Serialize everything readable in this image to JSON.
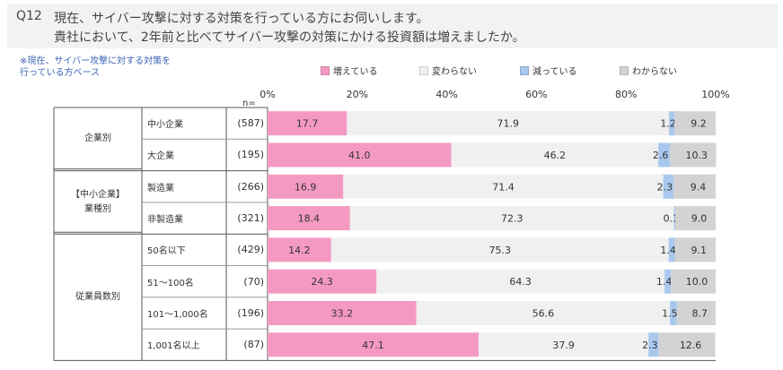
{
  "question": {
    "number": "Q12",
    "line1": "現在、サイバー攻撃に対する対策を行っている方にお伺いします。",
    "line2": "貴社において、2年前と比べてサイバー攻撃の対策にかける投資額は増えましたか。"
  },
  "note": "※現在、サイバー攻撃に対する対策を\n 行っている方ベース",
  "n_label": "n=",
  "chart_data": {
    "type": "bar",
    "orientation": "horizontal",
    "stacked": true,
    "xlim": [
      0,
      100
    ],
    "ticks": [
      "0%",
      "20%",
      "40%",
      "60%",
      "80%",
      "100%"
    ],
    "legend_position": "top",
    "groups": [
      {
        "label": "企業別",
        "rows": [
          0,
          1
        ]
      },
      {
        "label": "【中小企業】\n業種別",
        "rows": [
          2,
          3
        ]
      },
      {
        "label": "従業員数別",
        "rows": [
          4,
          5,
          6,
          7
        ]
      }
    ],
    "categories": [
      "中小企業",
      "大企業",
      "製造業",
      "非製造業",
      "50名以下",
      "51～100名",
      "101～1,000名",
      "1,001名以上"
    ],
    "n": [
      "(587)",
      "(195)",
      "(266)",
      "(321)",
      "(429)",
      "(70)",
      "(196)",
      "(87)"
    ],
    "series": [
      {
        "name": "増えている",
        "color": "#f49ac2",
        "values": [
          17.7,
          41.0,
          16.9,
          18.4,
          14.2,
          24.3,
          33.2,
          47.1
        ]
      },
      {
        "name": "変わらない",
        "color": "#f0f0f0",
        "values": [
          71.9,
          46.2,
          71.4,
          72.3,
          75.3,
          64.3,
          56.6,
          37.9
        ]
      },
      {
        "name": "減っている",
        "color": "#a9c8ee",
        "values": [
          1.2,
          2.6,
          2.3,
          0.3,
          1.4,
          1.4,
          1.5,
          2.3
        ]
      },
      {
        "name": "わからない",
        "color": "#d3d3d3",
        "values": [
          9.2,
          10.3,
          9.4,
          9.0,
          9.1,
          10.0,
          8.7,
          12.6
        ]
      }
    ]
  }
}
